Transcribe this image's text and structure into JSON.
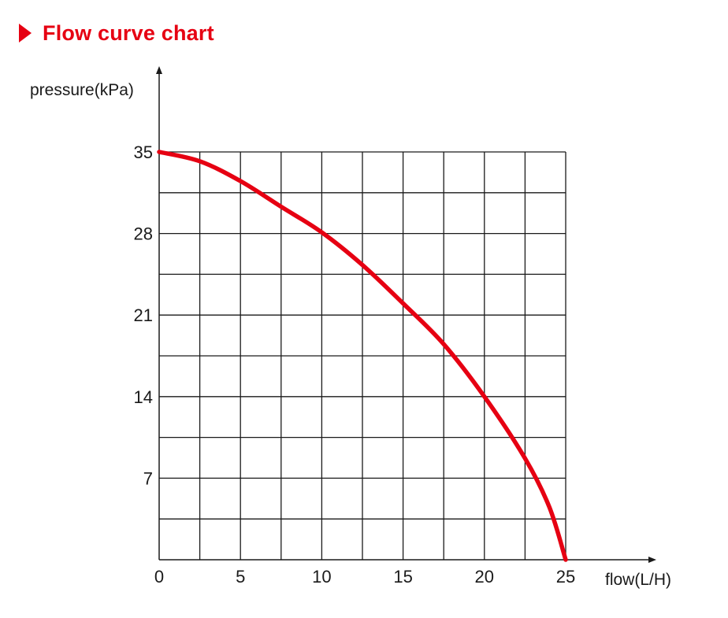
{
  "header": {
    "title": "Flow curve chart"
  },
  "colors": {
    "accent": "#e60012",
    "grid": "#1a1a1a",
    "text": "#1a1a1a"
  },
  "chart_data": {
    "type": "line",
    "title": "Flow curve chart",
    "xlabel": "flow(L/H)",
    "ylabel": "pressure(kPa)",
    "xlim": [
      0,
      25
    ],
    "ylim": [
      0,
      35
    ],
    "xticks": [
      0,
      5,
      10,
      15,
      20,
      25
    ],
    "yticks": [
      7,
      14,
      21,
      28,
      35
    ],
    "grid": true,
    "grid_x_step": 2.5,
    "grid_y_step": 3.5,
    "series": [
      {
        "color": "#e60012",
        "x": [
          0,
          2.5,
          5,
          7.5,
          10,
          12.5,
          15,
          17.5,
          20,
          22.5,
          24,
          25
        ],
        "y": [
          35,
          34.2,
          32.5,
          30.3,
          28.1,
          25.3,
          22,
          18.5,
          14,
          8.7,
          4.5,
          0
        ]
      }
    ]
  }
}
